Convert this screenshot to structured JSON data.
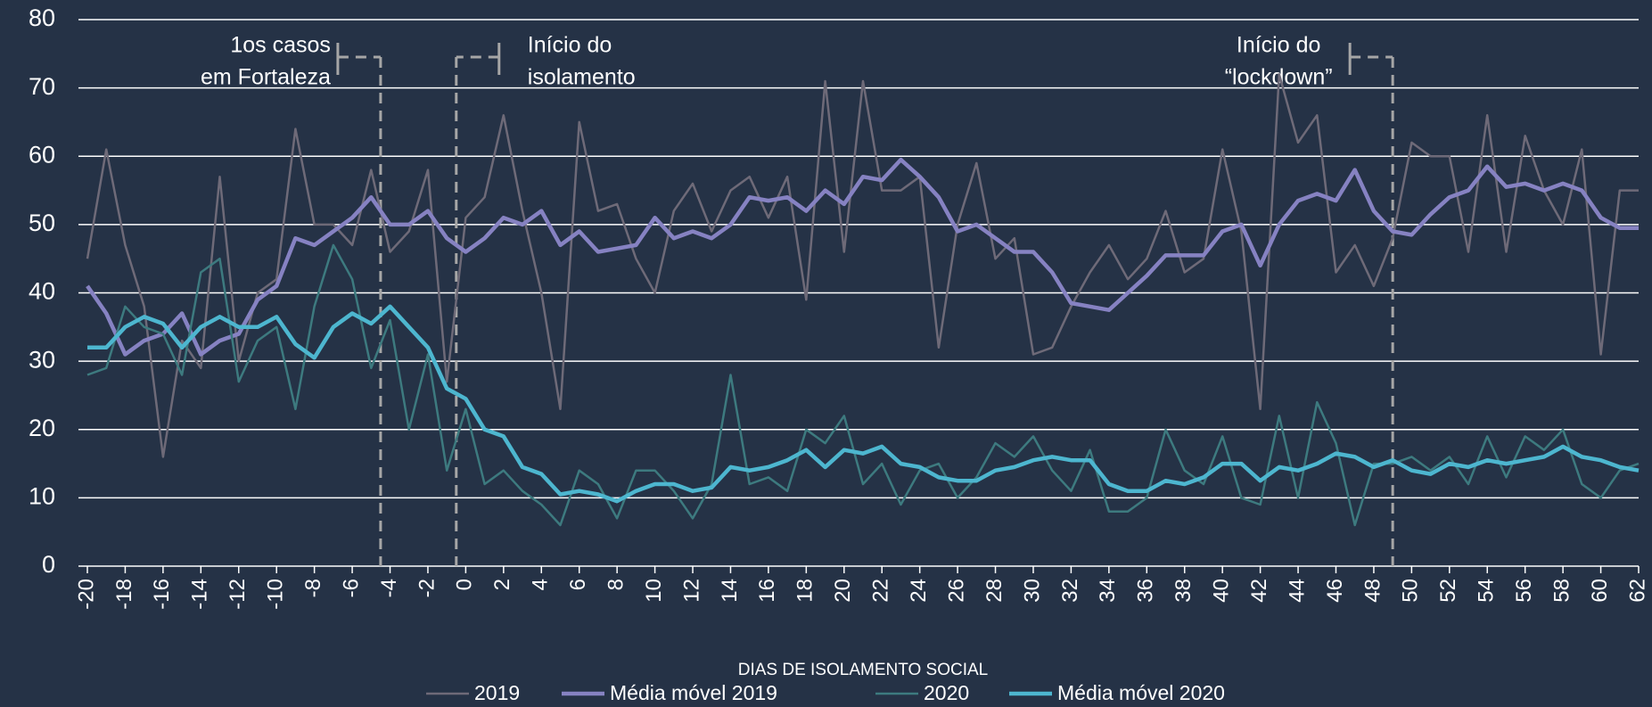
{
  "chart_data": {
    "type": "line",
    "x_label": "DIAS DE ISOLAMENTO SOCIAL",
    "x": [
      -20,
      -19,
      -18,
      -17,
      -16,
      -15,
      -14,
      -13,
      -12,
      -11,
      -10,
      -9,
      -8,
      -7,
      -6,
      -5,
      -4,
      -3,
      -2,
      -1,
      0,
      1,
      2,
      3,
      4,
      5,
      6,
      7,
      8,
      9,
      10,
      11,
      12,
      13,
      14,
      15,
      16,
      17,
      18,
      19,
      20,
      21,
      22,
      23,
      24,
      25,
      26,
      27,
      28,
      29,
      30,
      31,
      32,
      33,
      34,
      35,
      36,
      37,
      38,
      39,
      40,
      41,
      42,
      43,
      44,
      45,
      46,
      47,
      48,
      49,
      50,
      51,
      52,
      53,
      54,
      55,
      56,
      57,
      58,
      59,
      60,
      61,
      62
    ],
    "series": [
      {
        "name": "2019",
        "color": "#6e6a78",
        "width": 2.5,
        "values": [
          45,
          61,
          47,
          38,
          16,
          33,
          29,
          57,
          30,
          40,
          42,
          64,
          50,
          50,
          47,
          58,
          46,
          49,
          58,
          27,
          51,
          54,
          66,
          52,
          40,
          23,
          65,
          52,
          53,
          45,
          40,
          52,
          56,
          49,
          55,
          57,
          51,
          57,
          39,
          71,
          46,
          71,
          55,
          55,
          57,
          32,
          50,
          59,
          45,
          48,
          31,
          32,
          38,
          43,
          47,
          42,
          45,
          52,
          43,
          45,
          61,
          49,
          23,
          72,
          62,
          66,
          43,
          47,
          41,
          48,
          62,
          60,
          60,
          46,
          66,
          46,
          63,
          55,
          50,
          61,
          31,
          55,
          55
        ]
      },
      {
        "name": "Média móvel 2019",
        "color": "#8682c2",
        "width": 4.5,
        "values": [
          41,
          37,
          31,
          33,
          34,
          37,
          31,
          33,
          34,
          39,
          41,
          48,
          47,
          49,
          51,
          54,
          50,
          50,
          52,
          48,
          46,
          48,
          51,
          50,
          52,
          47,
          49,
          46,
          46.5,
          47,
          51,
          48,
          49,
          48,
          50,
          54,
          53.5,
          54,
          52,
          55,
          53,
          57,
          56.5,
          59.5,
          57,
          54,
          49,
          50,
          48,
          46,
          46,
          43,
          38.5,
          38,
          37.5,
          40,
          42.5,
          45.5,
          45.5,
          45.5,
          49,
          50,
          44,
          50,
          53.5,
          54.5,
          53.5,
          58,
          52,
          49,
          48.5,
          51.5,
          54,
          55,
          58.5,
          55.5,
          56,
          55,
          56,
          55,
          51,
          49.5,
          49.5
        ]
      },
      {
        "name": "2020",
        "color": "#3d7a7f",
        "width": 2.5,
        "values": [
          28,
          29,
          38,
          35,
          34,
          28,
          43,
          45,
          27,
          33,
          35,
          23,
          38,
          47,
          42,
          29,
          36,
          20,
          31,
          14,
          23,
          12,
          14,
          11,
          9,
          6,
          14,
          12,
          7,
          14,
          14,
          11,
          7,
          12,
          28,
          12,
          13,
          11,
          20,
          18,
          22,
          12,
          15,
          9,
          14,
          15,
          10,
          13,
          18,
          16,
          19,
          14,
          11,
          17,
          8,
          8,
          10,
          20,
          14,
          12,
          19,
          10,
          9,
          22,
          10,
          24,
          18,
          6,
          15,
          15,
          16,
          14,
          16,
          12,
          19,
          13,
          19,
          17,
          20,
          12,
          10,
          14,
          15
        ]
      },
      {
        "name": "Média móvel 2020",
        "color": "#4db6cf",
        "width": 4.5,
        "values": [
          32,
          32,
          35,
          36.5,
          35.5,
          32,
          35,
          36.5,
          35,
          35,
          36.5,
          32.5,
          30.5,
          35,
          37,
          35.5,
          38,
          35,
          32,
          26,
          24.5,
          20,
          19,
          14.5,
          13.5,
          10.5,
          11,
          10.5,
          9.5,
          11,
          12,
          12,
          11,
          11.5,
          14.5,
          14,
          14.5,
          15.5,
          17,
          14.5,
          17,
          16.5,
          17.5,
          15,
          14.5,
          13,
          12.5,
          12.5,
          14,
          14.5,
          15.5,
          16,
          15.5,
          15.5,
          12,
          11,
          11,
          12.5,
          12,
          13,
          15,
          15,
          12.5,
          14.5,
          14,
          15,
          16.5,
          16,
          14.5,
          15.5,
          14,
          13.5,
          15,
          14.5,
          15.5,
          15,
          15.5,
          16,
          17.5,
          16,
          15.5,
          14.5,
          14
        ]
      }
    ],
    "xlim": [
      -20,
      62
    ],
    "xticks": [
      -20,
      -18,
      -16,
      -14,
      -12,
      -10,
      -8,
      -6,
      -4,
      -2,
      0,
      2,
      4,
      6,
      8,
      10,
      12,
      14,
      16,
      18,
      20,
      22,
      24,
      26,
      28,
      30,
      32,
      34,
      36,
      38,
      40,
      42,
      44,
      46,
      48,
      50,
      52,
      54,
      56,
      58,
      60,
      62
    ],
    "ylim": [
      0,
      80
    ],
    "yticks": [
      0,
      10,
      20,
      30,
      40,
      50,
      60,
      70,
      80
    ],
    "grid": true,
    "legend": "bottom",
    "annotations": [
      {
        "text": [
          "1os casos",
          "em Fortaleza"
        ],
        "x": -4.5
      },
      {
        "text": [
          "Início do",
          "isolamento"
        ],
        "x": -0.5
      },
      {
        "text": [
          "Início do",
          "“lockdown”"
        ],
        "x": 49
      }
    ]
  }
}
